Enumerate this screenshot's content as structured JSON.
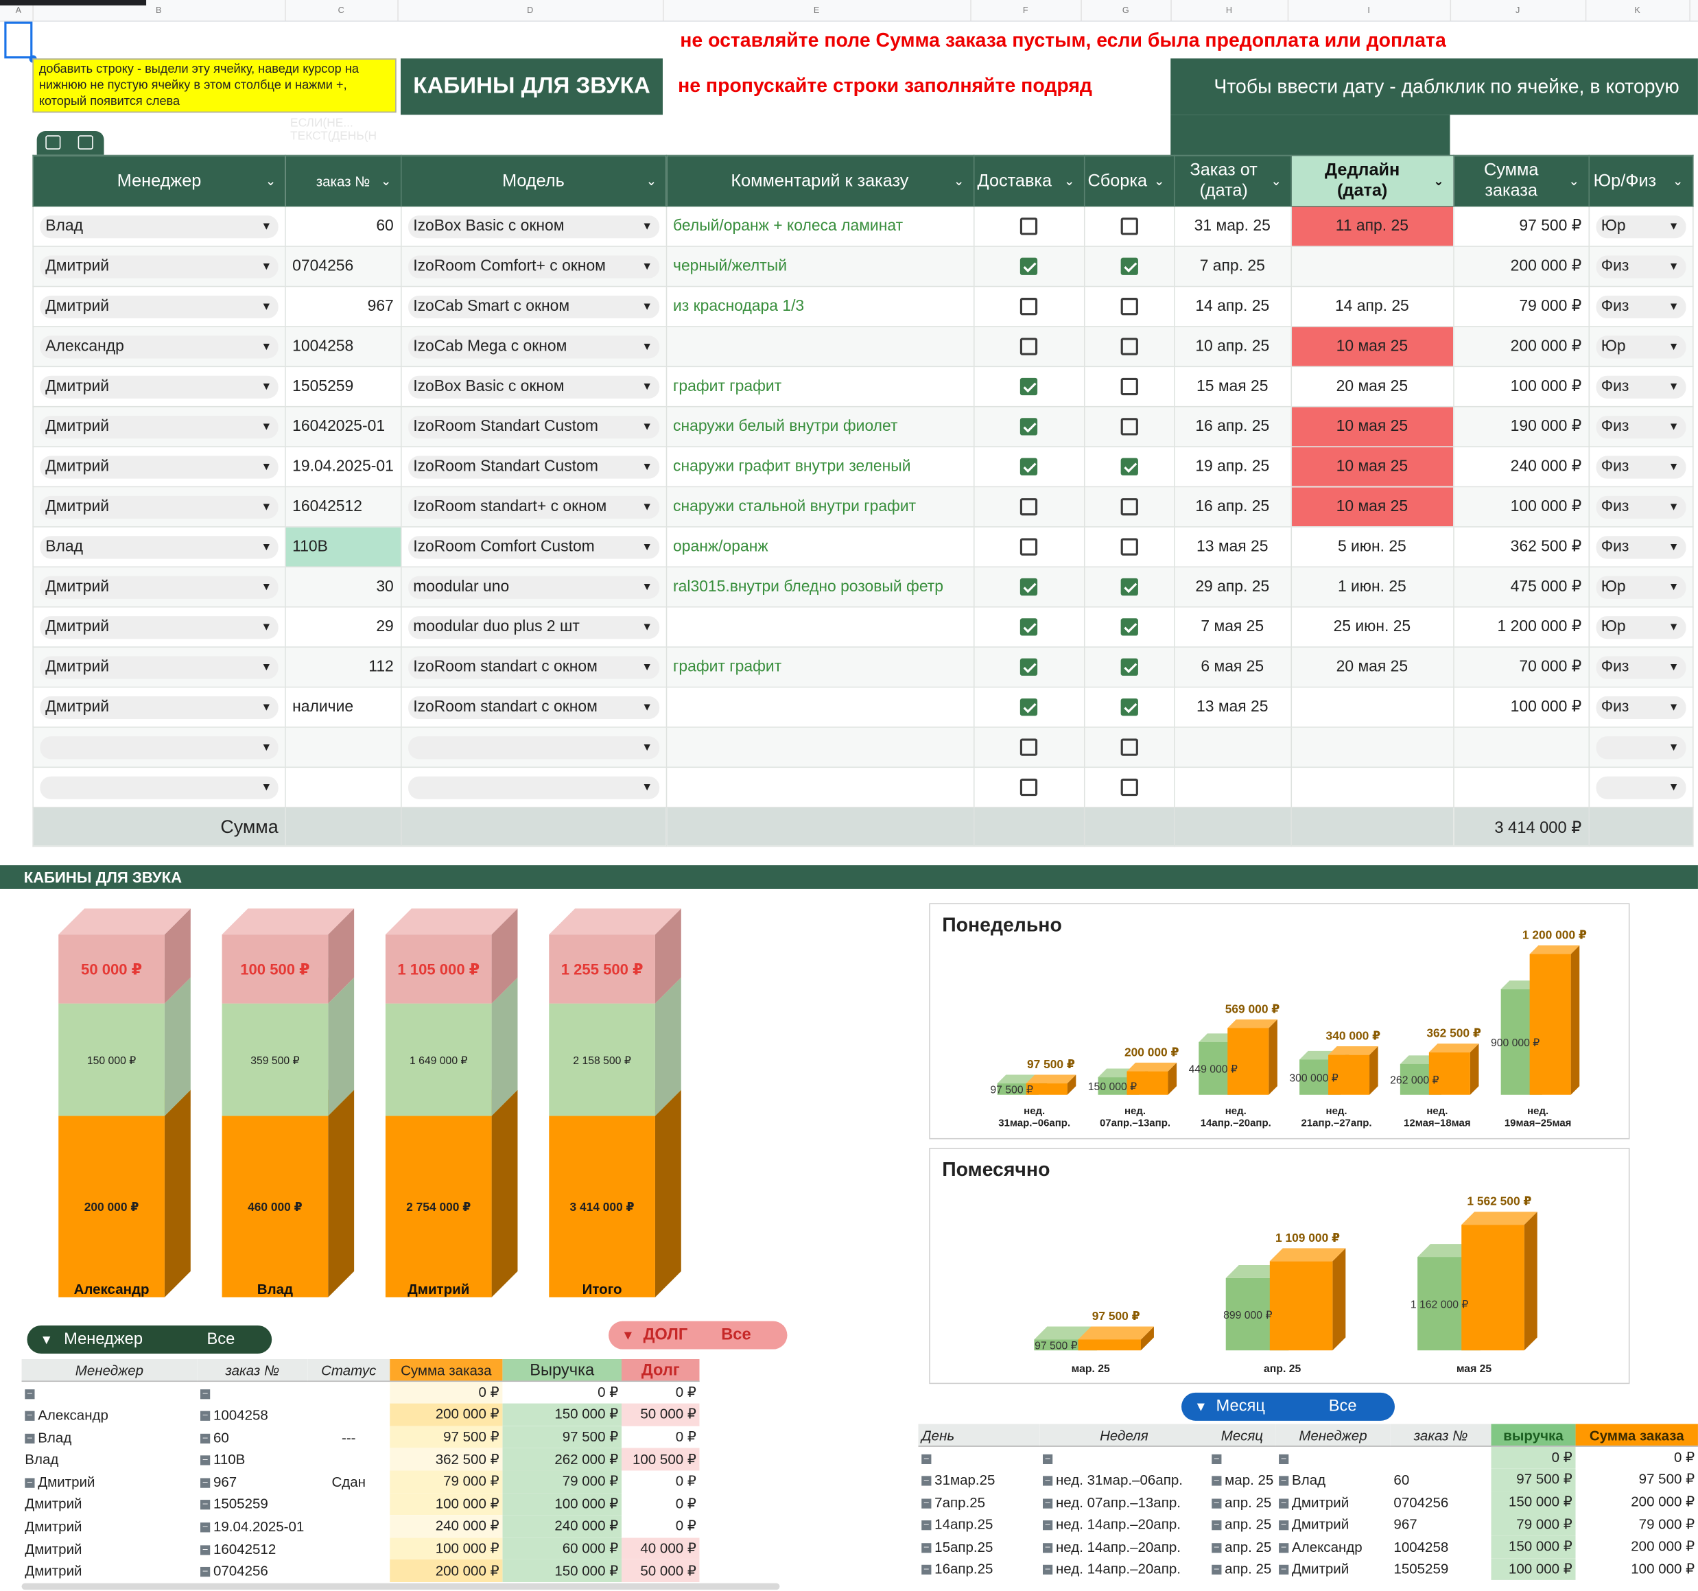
{
  "colors": {
    "brand_green": "#33624e",
    "warn_red": "#ee0000",
    "deadline_red": "#f36a6a",
    "orange": "#ff9800",
    "light_green": "#a5d6a7",
    "pink": "#ef9a9a"
  },
  "col_letters": [
    "A",
    "B",
    "C",
    "D",
    "E",
    "F",
    "G",
    "H",
    "I",
    "J",
    "K"
  ],
  "sheet1": {
    "note": "добавить строку - выдели эту ячейку, наведи курсор на нижнюю не пустую ячейку в этом столбце и нажми +, который появится слева",
    "title": "КАБИНЫ ДЛЯ ЗВУКА",
    "warning1": "не оставляйте поле Сумма заказа пустым, если была предоплата или доплата",
    "warning2": "не пропускайте строки заполняйте подряд",
    "date_hint": "Чтобы ввести дату - даблклик по ячейке, в которую",
    "ghost_text": "ЕСЛИ(НЕ...\nТЕКСТ(ДЕНЬ(Н",
    "headers": {
      "manager": "Менеджер",
      "order": "заказ №",
      "model": "Модель",
      "comment": "Комментарий к заказу",
      "delivery": "Доставка",
      "assembly": "Сборка",
      "order_date": "Заказ от (дата)",
      "deadline": "Дедлайн (дата)",
      "sum": "Сумма заказа",
      "type": "Юр/Физ"
    },
    "rows": [
      {
        "manager": "Влад",
        "order": "60",
        "order_align": "r",
        "model": "IzoBox Basic с окном",
        "comment": "белый/оранж + колеса ламинат",
        "delivery": false,
        "assembly": false,
        "date": "31 мар. 25",
        "deadline": "11 апр. 25",
        "deadline_red": true,
        "sum": "97 500 ₽",
        "type": "Юр"
      },
      {
        "manager": "Дмитрий",
        "order": "0704256",
        "order_align": "l",
        "model": "IzoRoom Comfort+ с окном",
        "comment": "черный/желтый",
        "delivery": true,
        "assembly": true,
        "date": "7 апр. 25",
        "deadline": "",
        "deadline_red": false,
        "sum": "200 000 ₽",
        "type": "Физ"
      },
      {
        "manager": "Дмитрий",
        "order": "967",
        "order_align": "r",
        "model": "IzoCab Smart с окном",
        "comment": "из краснодара 1/3",
        "delivery": false,
        "assembly": false,
        "date": "14 апр. 25",
        "deadline": "14 апр. 25",
        "deadline_red": false,
        "sum": "79 000 ₽",
        "type": "Физ"
      },
      {
        "manager": "Александр",
        "order": "1004258",
        "order_align": "l",
        "model": "IzoCab Mega с окном",
        "comment": "",
        "delivery": false,
        "assembly": false,
        "date": "10 апр. 25",
        "deadline": "10 мая 25",
        "deadline_red": true,
        "sum": "200 000 ₽",
        "type": "Юр"
      },
      {
        "manager": "Дмитрий",
        "order": "1505259",
        "order_align": "l",
        "model": "IzoBox Basic с окном",
        "comment": "графит графит",
        "delivery": true,
        "assembly": false,
        "date": "15 мая 25",
        "deadline": "20 мая 25",
        "deadline_red": false,
        "sum": "100 000 ₽",
        "type": "Физ"
      },
      {
        "manager": "Дмитрий",
        "order": "16042025-01",
        "order_align": "l",
        "model": "IzoRoom Standart Custom",
        "comment": "снаружи белый внутри фиолет",
        "delivery": true,
        "assembly": false,
        "date": "16 апр. 25",
        "deadline": "10 мая 25",
        "deadline_red": true,
        "sum": "190 000 ₽",
        "type": "Физ"
      },
      {
        "manager": "Дмитрий",
        "order": "19.04.2025-01",
        "order_align": "l",
        "model": "IzoRoom Standart Custom",
        "comment": "снаружи графит внутри зеленый",
        "delivery": true,
        "assembly": true,
        "date": "19 апр. 25",
        "deadline": "10 мая 25",
        "deadline_red": true,
        "sum": "240 000 ₽",
        "type": "Физ"
      },
      {
        "manager": "Дмитрий",
        "order": "16042512",
        "order_align": "l",
        "model": "IzoRoom standart+ с окном",
        "comment": "снаружи стальной внутри графит",
        "delivery": false,
        "assembly": false,
        "date": "16 апр. 25",
        "deadline": "10 мая 25",
        "deadline_red": true,
        "sum": "100 000 ₽",
        "type": "Физ"
      },
      {
        "manager": "Влад",
        "order": "110В",
        "order_align": "l",
        "order_mint": true,
        "model": "IzoRoom Comfort Custom",
        "comment": "оранж/оранж",
        "delivery": false,
        "assembly": false,
        "date": "13 мая 25",
        "deadline": "5 июн. 25",
        "deadline_red": false,
        "sum": "362 500 ₽",
        "type": "Физ"
      },
      {
        "manager": "Дмитрий",
        "order": "30",
        "order_align": "r",
        "model": "moodular uno",
        "comment": "ral3015.внутри бледно розовый фетр",
        "delivery": true,
        "assembly": true,
        "date": "29 апр. 25",
        "deadline": "1 июн. 25",
        "deadline_red": false,
        "sum": "475 000 ₽",
        "type": "Юр"
      },
      {
        "manager": "Дмитрий",
        "order": "29",
        "order_align": "r",
        "model": "moodular duo plus 2 шт",
        "comment": "",
        "delivery": true,
        "assembly": true,
        "date": "7 мая 25",
        "deadline": "25 июн. 25",
        "deadline_red": false,
        "sum": "1 200 000 ₽",
        "type": "Юр"
      },
      {
        "manager": "Дмитрий",
        "order": "112",
        "order_align": "r",
        "model": "IzoRoom standart с окном",
        "comment": "графит графит",
        "delivery": true,
        "assembly": true,
        "date": "6 мая 25",
        "deadline": "20 мая 25",
        "deadline_red": false,
        "sum": "70 000 ₽",
        "type": "Физ"
      },
      {
        "manager": "Дмитрий",
        "order": "наличие",
        "order_align": "l",
        "model": "IzoRoom standart с окном",
        "comment": "",
        "delivery": true,
        "assembly": true,
        "date": "13 мая 25",
        "deadline": "",
        "deadline_red": false,
        "sum": "100 000 ₽",
        "type": "Физ"
      },
      {
        "manager": "",
        "order": "",
        "order_align": "l",
        "model": "",
        "comment": "",
        "delivery": false,
        "assembly": false,
        "date": "",
        "deadline": "",
        "deadline_red": false,
        "sum": "",
        "type": ""
      },
      {
        "manager": "",
        "order": "",
        "order_align": "l",
        "model": "",
        "comment": "",
        "delivery": false,
        "assembly": false,
        "date": "",
        "deadline": "",
        "deadline_red": false,
        "sum": "",
        "type": ""
      }
    ],
    "sum_label": "Сумма",
    "sum_total": "3 414 000 ₽"
  },
  "sheet2": {
    "tab_title": "КАБИНЫ ДЛЯ ЗВУКА",
    "filter_manager": {
      "label": "Менеджер",
      "value": "Все"
    },
    "filter_debt": {
      "label": "ДОЛГ",
      "value": "Все"
    },
    "filter_month": {
      "label": "Месяц",
      "value": "Все"
    },
    "pivot1": {
      "headers": [
        "Менеджер",
        "заказ №",
        "Статус",
        "Сумма заказа",
        "Выручка",
        "Долг"
      ],
      "rows": [
        {
          "m": "",
          "o": "",
          "s": "",
          "sum": "0 ₽",
          "rev": "0 ₽",
          "debt": "0 ₽",
          "mm": true,
          "om": true
        },
        {
          "m": "Александр",
          "o": "1004258",
          "s": "",
          "sum": "200 000 ₽",
          "rev": "150 000 ₽",
          "debt": "50 000 ₽",
          "mm": true,
          "om": true
        },
        {
          "m": "Влад",
          "o": "60",
          "s": "---",
          "sum": "97 500 ₽",
          "rev": "97 500 ₽",
          "debt": "0 ₽",
          "mm": true,
          "om": true
        },
        {
          "m": "Влад",
          "o": "110В",
          "s": "",
          "sum": "362 500 ₽",
          "rev": "262 000 ₽",
          "debt": "100 500 ₽",
          "mm": false,
          "om": true
        },
        {
          "m": "Дмитрий",
          "o": "967",
          "s": "Сдан",
          "sum": "79 000 ₽",
          "rev": "79 000 ₽",
          "debt": "0 ₽",
          "mm": true,
          "om": true
        },
        {
          "m": "Дмитрий",
          "o": "1505259",
          "s": "",
          "sum": "100 000 ₽",
          "rev": "100 000 ₽",
          "debt": "0 ₽",
          "mm": false,
          "om": true
        },
        {
          "m": "Дмитрий",
          "o": "19.04.2025-01",
          "s": "",
          "sum": "240 000 ₽",
          "rev": "240 000 ₽",
          "debt": "0 ₽",
          "mm": false,
          "om": true
        },
        {
          "m": "Дмитрий",
          "o": "16042512",
          "s": "",
          "sum": "100 000 ₽",
          "rev": "60 000 ₽",
          "debt": "40 000 ₽",
          "mm": false,
          "om": true
        },
        {
          "m": "Дмитрий",
          "o": "0704256",
          "s": "",
          "sum": "200 000 ₽",
          "rev": "150 000 ₽",
          "debt": "50 000 ₽",
          "mm": false,
          "om": true
        }
      ]
    },
    "pivot2": {
      "headers": [
        "День",
        "Неделя",
        "Месяц",
        "Менеджер",
        "заказ №",
        "выручка",
        "Сумма заказа"
      ],
      "rows": [
        {
          "d": "",
          "w": "",
          "mo": "",
          "m": "",
          "o": "",
          "rev": "0 ₽",
          "sum": "0 ₽"
        },
        {
          "d": "31мар.25",
          "w": "нед. 31мар.–06апр.",
          "mo": "мар. 25",
          "m": "Влад",
          "o": "60",
          "rev": "97 500 ₽",
          "sum": "97 500 ₽"
        },
        {
          "d": "7апр.25",
          "w": "нед. 07апр.–13апр.",
          "mo": "апр. 25",
          "m": "Дмитрий",
          "o": "0704256",
          "rev": "150 000 ₽",
          "sum": "200 000 ₽"
        },
        {
          "d": "14апр.25",
          "w": "нед. 14апр.–20апр.",
          "mo": "апр. 25",
          "m": "Дмитрий",
          "o": "967",
          "rev": "79 000 ₽",
          "sum": "79 000 ₽"
        },
        {
          "d": "15апр.25",
          "w": "нед. 14апр.–20апр.",
          "mo": "апр. 25",
          "m": "Александр",
          "o": "1004258",
          "rev": "150 000 ₽",
          "sum": "200 000 ₽"
        },
        {
          "d": "16апр.25",
          "w": "нед. 14апр.–20апр.",
          "mo": "апр. 25",
          "m": "Дмитрий",
          "o": "1505259",
          "rev": "100 000 ₽",
          "sum": "100 000 ₽"
        }
      ]
    }
  },
  "chart_data": [
    {
      "type": "bar",
      "stacked": true,
      "three_d": true,
      "title": "",
      "categories": [
        "Александр",
        "Влад",
        "Дмитрий",
        "Итого"
      ],
      "series": [],
      "values_sum": [
        200000,
        460000,
        2754000,
        3414000
      ],
      "values_revenue": [
        150000,
        359500,
        1649000,
        2158500
      ],
      "values_debt": [
        50000,
        100500,
        1105000,
        1255500
      ],
      "labels_sum": [
        "200 000 ₽",
        "460 000 ₽",
        "2 754 000 ₽",
        "3 414 000 ₽"
      ],
      "labels_revenue": [
        "150 000 ₽",
        "359 500 ₽",
        "1 649 000 ₽",
        "2 158 500 ₽"
      ],
      "labels_debt": [
        "50 000 ₽",
        "100 500 ₽",
        "1 105 000 ₽",
        "1 255 500 ₽"
      ]
    },
    {
      "type": "bar",
      "three_d": true,
      "title": "Понедельно",
      "categories": [
        [
          "нед.",
          "31мар.–06апр."
        ],
        [
          "нед.",
          "07апр.–13апр."
        ],
        [
          "нед.",
          "14апр.–20апр."
        ],
        [
          "нед.",
          "21апр.–27апр."
        ],
        [
          "нед.",
          "12мая–18мая"
        ],
        [
          "нед.",
          "19мая–25мая"
        ]
      ],
      "green": [
        97500,
        150000,
        449000,
        300000,
        262000,
        900000
      ],
      "orange": [
        97500,
        200000,
        569000,
        340000,
        362500,
        1200000
      ],
      "green_labels": [
        "97 500 ₽",
        "150 000 ₽",
        "449 000 ₽",
        "300 000 ₽",
        "262 000 ₽",
        "900 000 ₽"
      ],
      "orange_labels": [
        "97 500 ₽",
        "200 000 ₽",
        "569 000 ₽",
        "340 000 ₽",
        "362 500 ₽",
        "1 200 000 ₽"
      ],
      "ymax": 1200000
    },
    {
      "type": "bar",
      "three_d": true,
      "title": "Помесячно",
      "categories": [
        "мар. 25",
        "апр. 25",
        "мая 25"
      ],
      "green": [
        97500,
        899000,
        1162000
      ],
      "orange": [
        97500,
        1109000,
        1562500
      ],
      "green_labels": [
        "97 500 ₽",
        "899 000 ₽",
        "1 162 000 ₽"
      ],
      "orange_labels": [
        "97 500 ₽",
        "1 109 000 ₽",
        "1 562 500 ₽"
      ],
      "ymax": 1562500
    }
  ]
}
